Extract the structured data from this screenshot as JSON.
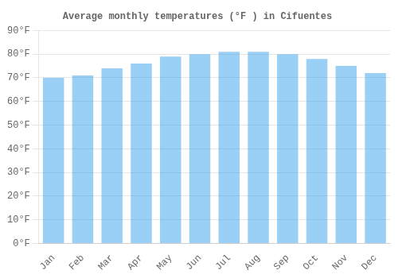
{
  "chart_data": {
    "type": "bar",
    "title": "Average monthly temperatures (°F ) in Cifuentes",
    "categories": [
      "Jan",
      "Feb",
      "Mar",
      "Apr",
      "May",
      "Jun",
      "Jul",
      "Aug",
      "Sep",
      "Oct",
      "Nov",
      "Dec"
    ],
    "values": [
      70,
      71,
      74,
      76,
      79,
      80,
      81,
      81,
      80,
      78,
      75,
      72
    ],
    "ylim": [
      0,
      90
    ],
    "yticks": [
      {
        "value": 0,
        "label": "0°F"
      },
      {
        "value": 10,
        "label": "10°F"
      },
      {
        "value": 20,
        "label": "20°F"
      },
      {
        "value": 30,
        "label": "30°F"
      },
      {
        "value": 40,
        "label": "40°F"
      },
      {
        "value": 50,
        "label": "50°F"
      },
      {
        "value": 60,
        "label": "60°F"
      },
      {
        "value": 70,
        "label": "70°F"
      },
      {
        "value": 80,
        "label": "80°F"
      },
      {
        "value": 90,
        "label": "90°F"
      }
    ],
    "grid": "y"
  }
}
